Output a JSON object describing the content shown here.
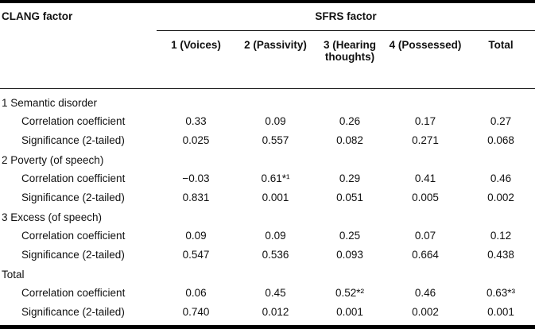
{
  "table": {
    "left_header": "CLANG factor",
    "span_header": "SFRS factor",
    "columns": [
      "1 (Voices)",
      "2 (Passivity)",
      "3 (Hearing thoughts)",
      "4 (Possessed)",
      "Total"
    ],
    "row_labels": {
      "corr": "Correlation coefficient",
      "sig": "Significance (2-tailed)"
    },
    "groups": [
      {
        "label": "1 Semantic disorder",
        "corr": [
          "0.33",
          "0.09",
          "0.26",
          "0.17",
          "0.27"
        ],
        "sig": [
          "0.025",
          "0.557",
          "0.082",
          "0.271",
          "0.068"
        ]
      },
      {
        "label": "2 Poverty (of speech)",
        "corr": [
          "−0.03",
          "0.61*¹",
          "0.29",
          "0.41",
          "0.46"
        ],
        "sig": [
          "0.831",
          "0.001",
          "0.051",
          "0.005",
          "0.002"
        ]
      },
      {
        "label": "3 Excess (of speech)",
        "corr": [
          "0.09",
          "0.09",
          "0.25",
          "0.07",
          "0.12"
        ],
        "sig": [
          "0.547",
          "0.536",
          "0.093",
          "0.664",
          "0.438"
        ]
      },
      {
        "label": "Total",
        "corr": [
          "0.06",
          "0.45",
          "0.52*²",
          "0.46",
          "0.63*³"
        ],
        "sig": [
          "0.740",
          "0.012",
          "0.001",
          "0.002",
          "0.001"
        ]
      }
    ],
    "colors": {
      "rule": "#000000",
      "text": "#111111",
      "background": "#ffffff"
    }
  }
}
